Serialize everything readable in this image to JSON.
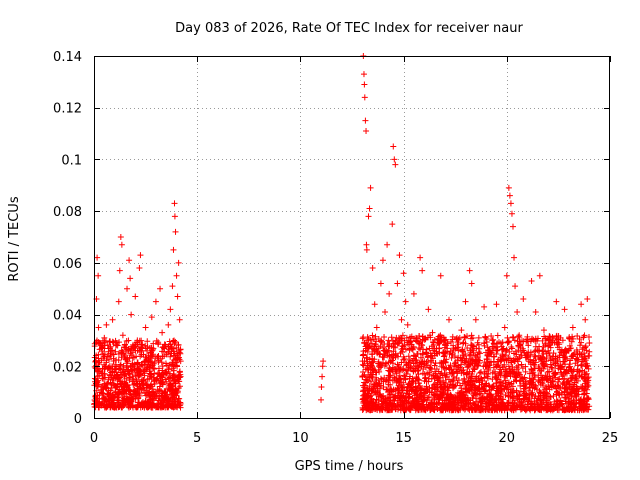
{
  "chart_data": {
    "type": "scatter",
    "title": "Day 083 of 2026, Rate Of TEC Index for receiver naur",
    "xlabel": "GPS time / hours",
    "ylabel": "ROTI / TECUs",
    "xlim": [
      0,
      25
    ],
    "ylim": [
      0,
      0.14
    ],
    "xticks": [
      0,
      5,
      10,
      15,
      20,
      25
    ],
    "xtick_labels": [
      "0",
      "5",
      "10",
      "15",
      "20",
      "25"
    ],
    "yticks": [
      0,
      0.02,
      0.04,
      0.06,
      0.08,
      0.1,
      0.12,
      0.14
    ],
    "ytick_labels": [
      "0",
      "0.02",
      "0.04",
      "0.06",
      "0.08",
      "0.1",
      "0.12",
      "0.14"
    ],
    "grid": true,
    "marker": "plus",
    "color": "#ff0000",
    "series": [
      {
        "name": "ROTI",
        "points": [
          [
            0.05,
            0.014
          ],
          [
            0.1,
            0.022
          ],
          [
            0.12,
            0.046
          ],
          [
            0.15,
            0.062
          ],
          [
            0.2,
            0.055
          ],
          [
            0.22,
            0.035
          ],
          [
            0.3,
            0.018
          ],
          [
            0.35,
            0.028
          ],
          [
            0.4,
            0.012
          ],
          [
            0.5,
            0.031
          ],
          [
            0.55,
            0.02
          ],
          [
            0.6,
            0.036
          ],
          [
            0.7,
            0.015
          ],
          [
            0.8,
            0.025
          ],
          [
            0.9,
            0.038
          ],
          [
            1.0,
            0.019
          ],
          [
            1.1,
            0.029
          ],
          [
            1.2,
            0.045
          ],
          [
            1.25,
            0.057
          ],
          [
            1.3,
            0.07
          ],
          [
            1.35,
            0.067
          ],
          [
            1.4,
            0.032
          ],
          [
            1.5,
            0.024
          ],
          [
            1.6,
            0.05
          ],
          [
            1.7,
            0.061
          ],
          [
            1.75,
            0.054
          ],
          [
            1.8,
            0.04
          ],
          [
            1.9,
            0.02
          ],
          [
            2.0,
            0.047
          ],
          [
            2.1,
            0.03
          ],
          [
            2.2,
            0.058
          ],
          [
            2.25,
            0.063
          ],
          [
            2.3,
            0.026
          ],
          [
            2.4,
            0.018
          ],
          [
            2.5,
            0.035
          ],
          [
            2.6,
            0.015
          ],
          [
            2.7,
            0.027
          ],
          [
            2.8,
            0.039
          ],
          [
            2.9,
            0.021
          ],
          [
            3.0,
            0.045
          ],
          [
            3.1,
            0.017
          ],
          [
            3.2,
            0.05
          ],
          [
            3.3,
            0.033
          ],
          [
            3.4,
            0.024
          ],
          [
            3.5,
            0.014
          ],
          [
            3.6,
            0.036
          ],
          [
            3.7,
            0.042
          ],
          [
            3.8,
            0.051
          ],
          [
            3.85,
            0.065
          ],
          [
            3.9,
            0.083
          ],
          [
            3.92,
            0.078
          ],
          [
            3.95,
            0.072
          ],
          [
            4.0,
            0.055
          ],
          [
            4.05,
            0.047
          ],
          [
            4.1,
            0.06
          ],
          [
            4.15,
            0.038
          ],
          [
            4.2,
            0.022
          ],
          [
            11.0,
            0.007
          ],
          [
            11.02,
            0.012
          ],
          [
            11.05,
            0.016
          ],
          [
            11.08,
            0.02
          ],
          [
            11.1,
            0.022
          ],
          [
            13.05,
            0.14
          ],
          [
            13.08,
            0.133
          ],
          [
            13.1,
            0.129
          ],
          [
            13.12,
            0.124
          ],
          [
            13.15,
            0.115
          ],
          [
            13.18,
            0.111
          ],
          [
            13.2,
            0.067
          ],
          [
            13.22,
            0.065
          ],
          [
            13.3,
            0.078
          ],
          [
            13.35,
            0.081
          ],
          [
            13.4,
            0.089
          ],
          [
            13.5,
            0.058
          ],
          [
            13.6,
            0.044
          ],
          [
            13.7,
            0.035
          ],
          [
            13.8,
            0.027
          ],
          [
            13.9,
            0.052
          ],
          [
            14.0,
            0.061
          ],
          [
            14.1,
            0.041
          ],
          [
            14.2,
            0.067
          ],
          [
            14.3,
            0.048
          ],
          [
            14.45,
            0.075
          ],
          [
            14.5,
            0.105
          ],
          [
            14.55,
            0.1
          ],
          [
            14.6,
            0.098
          ],
          [
            14.7,
            0.052
          ],
          [
            14.8,
            0.063
          ],
          [
            14.9,
            0.038
          ],
          [
            15.0,
            0.056
          ],
          [
            15.1,
            0.045
          ],
          [
            15.2,
            0.036
          ],
          [
            15.3,
            0.029
          ],
          [
            15.5,
            0.048
          ],
          [
            15.6,
            0.031
          ],
          [
            15.8,
            0.062
          ],
          [
            15.9,
            0.057
          ],
          [
            16.0,
            0.022
          ],
          [
            16.2,
            0.042
          ],
          [
            16.4,
            0.033
          ],
          [
            16.6,
            0.025
          ],
          [
            16.8,
            0.055
          ],
          [
            17.0,
            0.019
          ],
          [
            17.2,
            0.038
          ],
          [
            17.4,
            0.028
          ],
          [
            17.6,
            0.018
          ],
          [
            17.8,
            0.034
          ],
          [
            18.0,
            0.045
          ],
          [
            18.2,
            0.057
          ],
          [
            18.3,
            0.052
          ],
          [
            18.5,
            0.038
          ],
          [
            18.7,
            0.025
          ],
          [
            18.9,
            0.043
          ],
          [
            19.1,
            0.017
          ],
          [
            19.3,
            0.03
          ],
          [
            19.5,
            0.044
          ],
          [
            19.7,
            0.022
          ],
          [
            19.9,
            0.035
          ],
          [
            20.0,
            0.055
          ],
          [
            20.1,
            0.089
          ],
          [
            20.15,
            0.086
          ],
          [
            20.2,
            0.083
          ],
          [
            20.25,
            0.079
          ],
          [
            20.3,
            0.074
          ],
          [
            20.35,
            0.062
          ],
          [
            20.4,
            0.051
          ],
          [
            20.5,
            0.041
          ],
          [
            20.6,
            0.032
          ],
          [
            20.8,
            0.046
          ],
          [
            21.0,
            0.024
          ],
          [
            21.2,
            0.053
          ],
          [
            21.4,
            0.041
          ],
          [
            21.6,
            0.055
          ],
          [
            21.8,
            0.034
          ],
          [
            22.0,
            0.028
          ],
          [
            22.2,
            0.019
          ],
          [
            22.4,
            0.045
          ],
          [
            22.6,
            0.031
          ],
          [
            22.8,
            0.042
          ],
          [
            23.0,
            0.026
          ],
          [
            23.2,
            0.035
          ],
          [
            23.4,
            0.018
          ],
          [
            23.6,
            0.044
          ],
          [
            23.8,
            0.038
          ],
          [
            23.9,
            0.046
          ],
          [
            24.0,
            0.029
          ]
        ],
        "dense_bands": [
          {
            "x_start": 0.0,
            "x_end": 4.2,
            "low": 0.004,
            "high": 0.03
          },
          {
            "x_start": 13.0,
            "x_end": 24.0,
            "low": 0.003,
            "high": 0.032
          }
        ]
      }
    ]
  }
}
